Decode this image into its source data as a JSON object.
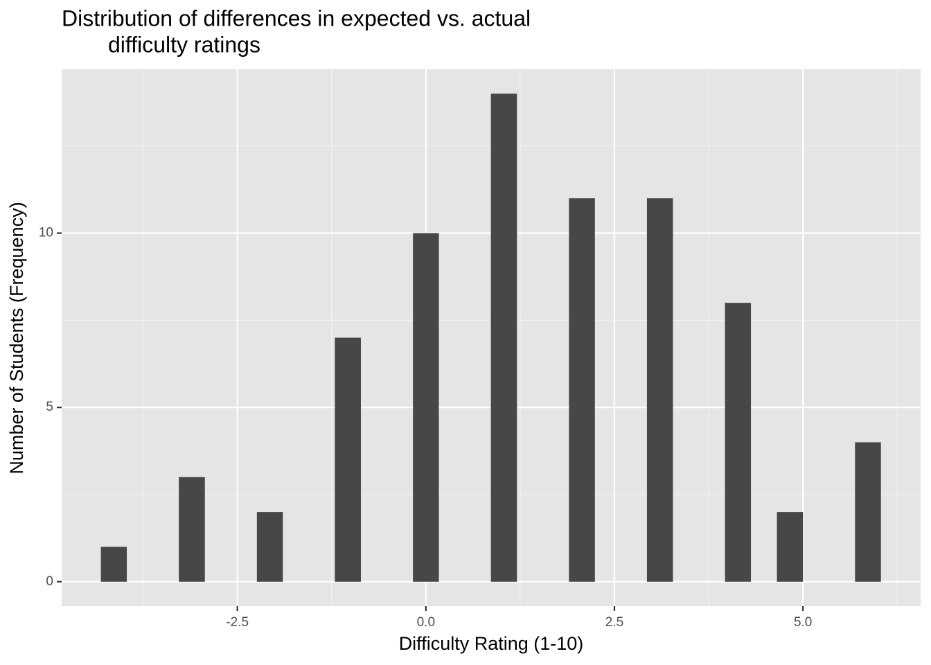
{
  "chart_data": {
    "type": "histogram",
    "title": [
      "Distribution of differences in expected vs. actual",
      "difficulty ratings"
    ],
    "x_label": "Difficulty Rating (1-10)",
    "y_label": "Number of Students (Frequency)",
    "bins": [
      -4.31,
      -3.966,
      -3.621,
      -3.276,
      -2.931,
      -2.586,
      -2.241,
      -1.897,
      -1.552,
      -1.207,
      -0.862,
      -0.517,
      -0.172,
      0.172,
      0.517,
      0.862,
      1.207,
      1.552,
      1.897,
      2.241,
      2.586,
      2.931,
      3.276,
      3.621,
      3.966,
      4.31,
      4.655,
      5.0,
      5.345,
      5.69,
      6.034
    ],
    "values": [
      1,
      0,
      0,
      3,
      0,
      0,
      2,
      0,
      0,
      7,
      0,
      0,
      10,
      0,
      0,
      14,
      0,
      0,
      11,
      0,
      0,
      11,
      0,
      0,
      8,
      0,
      2,
      0,
      0,
      4
    ],
    "color": "#474747",
    "xlim": [
      -4.83,
      6.56
    ],
    "ylim": [
      -0.7,
      14.7
    ],
    "xticks": [
      -2.5,
      {
        "value": 0,
        "label": "0.0"
      },
      2.5,
      {
        "value": 5,
        "label": "5.0"
      }
    ],
    "yticks": [
      0,
      5,
      10
    ],
    "x_minor_ticks": [
      -3.75,
      -1.25,
      1.25,
      3.75,
      6.25
    ],
    "y_minor_ticks": [
      2.5,
      7.5,
      12.5
    ],
    "grid": true
  }
}
